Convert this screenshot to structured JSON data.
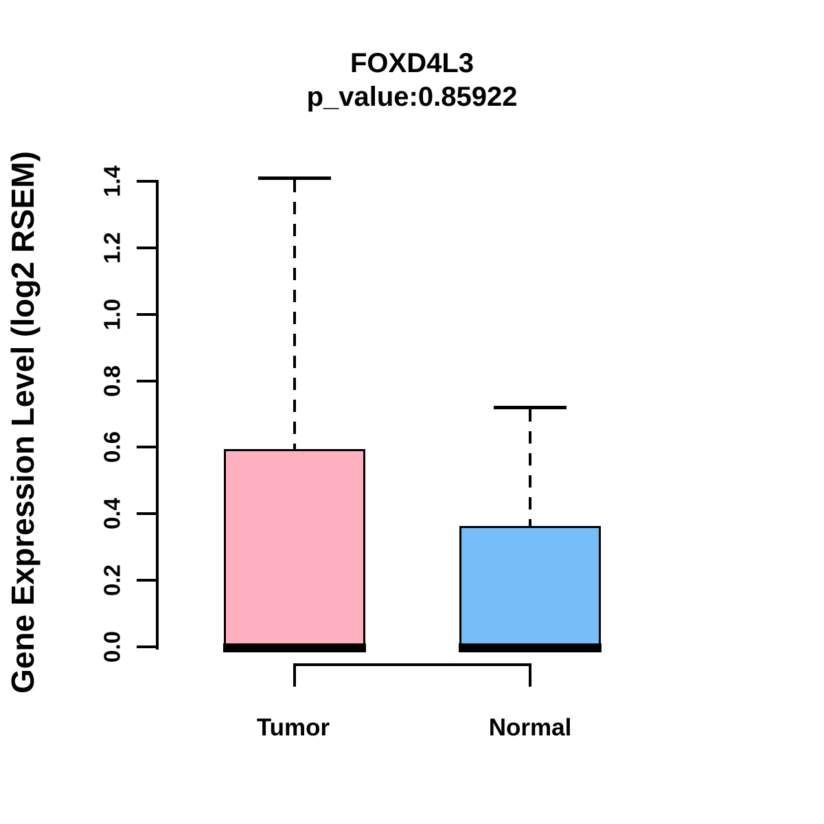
{
  "chart_data": {
    "type": "boxplot",
    "title": "FOXD4L3",
    "subtitle": "p_value:0.85922",
    "p_value": 0.85922,
    "ylabel": "Gene Expression Level (log2 RSEM)",
    "xlabel": "",
    "ylim": [
      0.0,
      1.4
    ],
    "yticks": [
      0.0,
      0.2,
      0.4,
      0.6,
      0.8,
      1.0,
      1.2,
      1.4
    ],
    "ytick_labels": [
      "0.0",
      "0.2",
      "0.4",
      "0.6",
      "0.8",
      "1.0",
      "1.2",
      "1.4"
    ],
    "grid": false,
    "legend": "none",
    "groups": [
      {
        "label": "Tumor",
        "color": "#FFB0C0",
        "whisker_low": 0.0,
        "q1": 0.0,
        "median": 0.0,
        "q3": 0.59,
        "whisker_high": 1.41
      },
      {
        "label": "Normal",
        "color": "#75BEF8",
        "whisker_low": 0.0,
        "q1": 0.0,
        "median": 0.0,
        "q3": 0.36,
        "whisker_high": 0.72
      }
    ]
  }
}
